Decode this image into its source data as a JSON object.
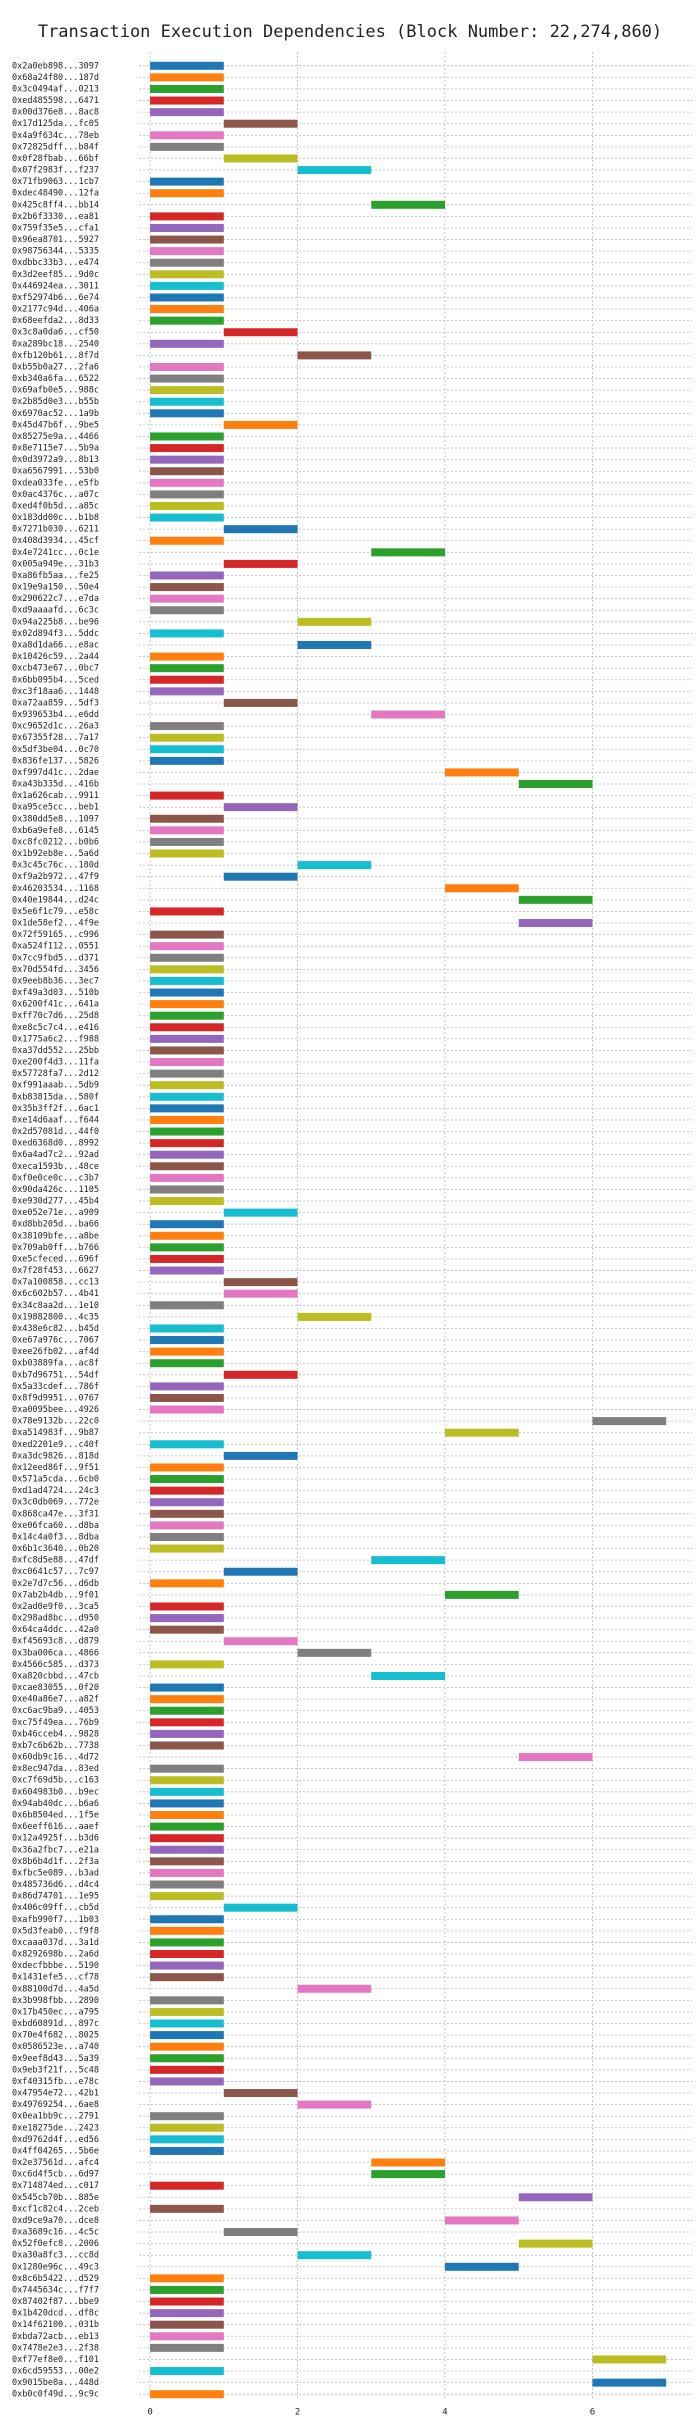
{
  "chart_data": {
    "type": "gantt",
    "title": "Transaction Execution Dependencies (Block Number: 22,274,860)",
    "categories": [
      "0x2a0eb898...3097",
      "0x68a24f80...187d",
      "0x3c0494af...0213",
      "0xed485598...6471",
      "0x00d376e8...8ac8",
      "0x17d125da...fc05",
      "0x4a9f634c...78eb",
      "0x72825dff...b84f",
      "0x0f28fbab...66bf",
      "0x07f2983f...f237",
      "0x71fb9063...1cb7",
      "0xdec48490...12fa",
      "0x425c8ff4...bb14",
      "0x2b6f3330...ea81",
      "0x759f35e5...cfa1",
      "0x96ea8701...5927",
      "0x98756344...5335",
      "0xdbbc33b3...e474",
      "0x3d2eef85...9d0c",
      "0x446924ea...3011",
      "0xf52974b6...6e74",
      "0x2177c94d...406a",
      "0x68eefda2...8d33",
      "0x3c8a0da6...cf50",
      "0xa289bc18...2540",
      "0xfb120b61...8f7d",
      "0xb55b0a27...2fa6",
      "0xb340a6fa...6522",
      "0x69afb0e5...988c",
      "0x2b85d0e3...b55b",
      "0x6970ac52...1a9b",
      "0x45d47b6f...9be5",
      "0x85275e9a...4466",
      "0x8e7115e7...5b9a",
      "0x0d3972a9...8b13",
      "0xa6567991...53b0",
      "0xdea033fe...e5fb",
      "0x0ac4376c...a07c",
      "0xed4f0b5d...a85c",
      "0x183dd00c...b1b8",
      "0x7271b030...6211",
      "0x408d3934...45cf",
      "0x4e7241cc...0c1e",
      "0x005a949e...31b3",
      "0xa86fb5aa...fe25",
      "0x19e9a150...50e4",
      "0x290622c7...e7da",
      "0xd9aaaafd...6c3c",
      "0x94a225b8...be96",
      "0x02d894f3...5ddc",
      "0xa8d1da66...e8ac",
      "0x10426c59...2a44",
      "0xcb473e67...0bc7",
      "0x6bb095b4...5ced",
      "0xc3f18aa6...1448",
      "0xa72aa859...5df3",
      "0x939653b4...e6dd",
      "0xc9652d1c...26a3",
      "0x67355f28...7a17",
      "0x5df3be04...0c70",
      "0x836fe137...5826",
      "0xf997d41c...2dae",
      "0xa43b335d...416b",
      "0x1a626cab...9911",
      "0xa95ce5cc...beb1",
      "0x380dd5e8...1097",
      "0xb6a9efe8...6145",
      "0xc8fc0212...b0b6",
      "0x1b92eb8e...5a6d",
      "0x3c45c76c...180d",
      "0xf9a2b972...47f9",
      "0x46203534...1168",
      "0x40e19844...d24c",
      "0x5e6f1c79...e58c",
      "0x1de58ef2...4f9e",
      "0x72f59165...c996",
      "0xa524f112...0551",
      "0x7cc9fbd5...d371",
      "0x70d554fd...3456",
      "0x9eeb8b36...3ec7",
      "0xf49a3d03...510b",
      "0x6200f41c...641a",
      "0xff70c7d6...25d8",
      "0xe8c5c7c4...e416",
      "0x1775a6c2...f988",
      "0xa37dd552...25bb",
      "0xe200f4d3...11fa",
      "0x57728fa7...2d12",
      "0xf991aaab...5db9",
      "0xb83815da...580f",
      "0x35b3ff2f...6ac1",
      "0xe14d6aaf...f644",
      "0x2d57081d...44f0",
      "0xed6368d0...8992",
      "0x6a4ad7c2...92ad",
      "0xeca1593b...48ce",
      "0xf0e0ce0c...c3b7",
      "0x90da426c...1105",
      "0xe930d277...45b4",
      "0xe052e71e...a909",
      "0xd8bb205d...ba66",
      "0x38109bfe...a8be",
      "0x709ab0ff...b766",
      "0xe5cfeced...696f",
      "0x7f28f453...6627",
      "0x7a100858...cc13",
      "0x6c602b57...4b41",
      "0x34c8aa2d...1e10",
      "0x19882800...4c35",
      "0x438e6c82...b45d",
      "0xe67a976c...7067",
      "0xee26fb02...af4d",
      "0xb03889fa...ac8f",
      "0xb7d96751...54df",
      "0x5a33cdef...786f",
      "0x8f9d9951...0767",
      "0xa0095bee...4926",
      "0x78e9132b...22c0",
      "0xa514983f...9b87",
      "0xed2201e9...c40f",
      "0xa3dc9826...818d",
      "0x12eed86f...9f51",
      "0x571a5cda...6cb0",
      "0xd1ad4724...24c3",
      "0x3c0db069...772e",
      "0x868ca47e...3f31",
      "0xe06fca60...d8ba",
      "0x14c4a0f3...8dba",
      "0x6b1c3640...0b20",
      "0xfc8d5e88...47df",
      "0xc0641c57...7c97",
      "0x2e7d7c56...d6db",
      "0x7ab2b4db...9f01",
      "0x2ad0e9f0...3ca5",
      "0x298ad8bc...d950",
      "0x64ca4ddc...42a0",
      "0xf45693c8...d879",
      "0x3ba006ca...4866",
      "0x4566c585...d373",
      "0xa820cbbd...47cb",
      "0xcae83055...0f20",
      "0xe40a86e7...a82f",
      "0xc6ac9ba9...4053",
      "0xc75f49ea...76b9",
      "0xb46cceb4...9828",
      "0xb7c6b62b...7738",
      "0x60db9c16...4d72",
      "0x8ec947da...83ed",
      "0xc7f69d5b...c163",
      "0x604983b0...b9ec",
      "0x94ab40dc...b6a6",
      "0x6b8504ed...1f5e",
      "0x6eeff616...aaef",
      "0x12a4925f...b3d6",
      "0x36a2fbc7...e21a",
      "0x8b6b4d1f...2f3a",
      "0xfbc5e089...b3ad",
      "0x485736d6...d4c4",
      "0x86d74701...1e95",
      "0x406c09ff...cb5d",
      "0xafb990f7...1b03",
      "0x5d3feab0...f9f8",
      "0xcaaa037d...3a1d",
      "0x8292698b...2a6d",
      "0xdecfbbbe...5190",
      "0x1431efe5...cf78",
      "0x88100d7d...4a5d",
      "0x3b998fbb...2890",
      "0x17b450ec...a795",
      "0xbd60891d...897c",
      "0x70e4f682...8025",
      "0x0586523e...a740",
      "0x9eef8d43...5a39",
      "0x9eb3f21f...5c48",
      "0xf40315fb...e78c",
      "0x47954e72...42b1",
      "0x49769254...6ae8",
      "0x0ea1bb9c...2791",
      "0xe18275de...2423",
      "0xd9762d4f...ed56",
      "0x4ff04265...5b6e",
      "0x2e37561d...afc4",
      "0xc6d4f5cb...6d97",
      "0x714874ed...c017",
      "0x545cb70b...885e",
      "0xcf1c82c4...2ceb",
      "0xd9ce9a70...dce8",
      "0xa3689c16...4c5c",
      "0x52f0efc8...2006",
      "0xa30a8fc3...cc8d",
      "0x1280e96c...49c3",
      "0x8c6b5422...d529",
      "0x7445634c...f7f7",
      "0x87402f87...bbe9",
      "0x1b420dcd...df8c",
      "0x14f62100...031b",
      "0xbda72acb...eb13",
      "0x7478e2e3...2f38",
      "0xf77ef8e0...f101",
      "0x6cd59553...00e2",
      "0x9015be0a...448d",
      "0xb0c0f49d...9c9c"
    ],
    "starts": [
      0,
      0,
      0,
      0,
      0,
      1,
      0,
      0,
      1,
      2,
      0,
      0,
      3,
      0,
      0,
      0,
      0,
      0,
      0,
      0,
      0,
      0,
      0,
      1,
      0,
      2,
      0,
      0,
      0,
      0,
      0,
      1,
      0,
      0,
      0,
      0,
      0,
      0,
      0,
      0,
      1,
      0,
      3,
      1,
      0,
      0,
      0,
      0,
      2,
      0,
      2,
      0,
      0,
      0,
      0,
      1,
      3,
      0,
      0,
      0,
      0,
      4,
      5,
      0,
      1,
      0,
      0,
      0,
      0,
      2,
      1,
      4,
      5,
      0,
      5,
      0,
      0,
      0,
      0,
      0,
      0,
      0,
      0,
      0,
      0,
      0,
      0,
      0,
      0,
      0,
      0,
      0,
      0,
      0,
      0,
      0,
      0,
      0,
      0,
      1,
      0,
      0,
      0,
      0,
      0,
      1,
      1,
      0,
      2,
      0,
      0,
      0,
      0,
      1,
      0,
      0,
      0,
      6,
      4,
      0,
      1,
      0,
      0,
      0,
      0,
      0,
      0,
      0,
      0,
      3,
      1,
      0,
      4,
      0,
      0,
      0,
      1,
      2,
      0,
      3,
      0,
      0,
      0,
      0,
      0,
      0,
      5,
      0,
      0,
      0,
      0,
      0,
      0,
      0,
      0,
      0,
      0,
      0,
      0,
      1,
      0,
      0,
      0,
      0,
      0,
      0,
      2,
      0,
      0,
      0,
      0,
      0,
      0,
      0,
      0,
      1,
      2,
      0,
      0,
      0,
      0,
      3,
      3,
      0,
      5,
      0,
      4,
      1,
      5,
      2,
      4,
      0,
      0,
      0,
      0,
      0,
      0,
      0,
      6,
      0,
      6,
      0
    ],
    "ends": [
      1,
      1,
      1,
      1,
      1,
      2,
      1,
      1,
      2,
      3,
      1,
      1,
      4,
      1,
      1,
      1,
      1,
      1,
      1,
      1,
      1,
      1,
      1,
      2,
      1,
      3,
      1,
      1,
      1,
      1,
      1,
      2,
      1,
      1,
      1,
      1,
      1,
      1,
      1,
      1,
      2,
      1,
      4,
      2,
      1,
      1,
      1,
      1,
      3,
      1,
      3,
      1,
      1,
      1,
      1,
      2,
      4,
      1,
      1,
      1,
      1,
      5,
      6,
      1,
      2,
      1,
      1,
      1,
      1,
      3,
      2,
      5,
      6,
      1,
      6,
      1,
      1,
      1,
      1,
      1,
      1,
      1,
      1,
      1,
      1,
      1,
      1,
      1,
      1,
      1,
      1,
      1,
      1,
      1,
      1,
      1,
      1,
      1,
      1,
      2,
      1,
      1,
      1,
      1,
      1,
      2,
      2,
      1,
      3,
      1,
      1,
      1,
      1,
      2,
      1,
      1,
      1,
      7,
      5,
      1,
      2,
      1,
      1,
      1,
      1,
      1,
      1,
      1,
      1,
      4,
      2,
      1,
      5,
      1,
      1,
      1,
      2,
      3,
      1,
      4,
      1,
      1,
      1,
      1,
      1,
      1,
      6,
      1,
      1,
      1,
      1,
      1,
      1,
      1,
      1,
      1,
      1,
      1,
      1,
      2,
      1,
      1,
      1,
      1,
      1,
      1,
      3,
      1,
      1,
      1,
      1,
      1,
      1,
      1,
      1,
      2,
      3,
      1,
      1,
      1,
      1,
      4,
      4,
      1,
      6,
      1,
      5,
      2,
      6,
      3,
      5,
      1,
      1,
      1,
      1,
      1,
      1,
      1,
      7,
      1,
      7,
      1
    ],
    "colors": [
      "#1f77b4",
      "#ff7f0e",
      "#2ca02c",
      "#d62728",
      "#9467bd",
      "#8c564b",
      "#e377c2",
      "#7f7f7f",
      "#bcbd22",
      "#17becf"
    ],
    "xlim": [
      -0.15,
      7.35
    ],
    "xticks": [
      0,
      2,
      4,
      6
    ],
    "grid": true
  }
}
